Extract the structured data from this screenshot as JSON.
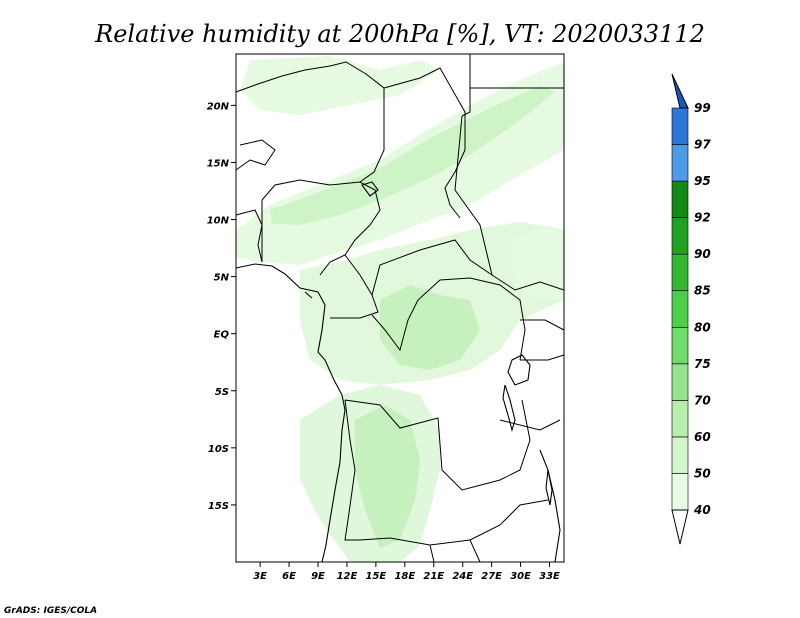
{
  "title": "Relative humidity at 200hPa [%], VT: 2020033112",
  "credit": "GrADS: IGES/COLA",
  "map": {
    "lat_labels": [
      "20N",
      "15N",
      "10N",
      "5N",
      "EQ",
      "5S",
      "10S",
      "15S"
    ],
    "lon_labels": [
      "3E",
      "6E",
      "9E",
      "12E",
      "15E",
      "18E",
      "21E",
      "24E",
      "27E",
      "30E",
      "33E"
    ],
    "lat_values": [
      20,
      15,
      10,
      5,
      0,
      -5,
      -10,
      -15
    ],
    "lon_values": [
      3,
      6,
      9,
      12,
      15,
      18,
      21,
      24,
      27,
      30,
      33
    ],
    "extent": {
      "lon_min": 0.5,
      "lon_max": 34.5,
      "lat_min": -20,
      "lat_max": 24.5
    }
  },
  "colorbar": {
    "labels": [
      "40",
      "50",
      "60",
      "70",
      "75",
      "80",
      "85",
      "90",
      "92",
      "95",
      "97",
      "99"
    ],
    "colors": [
      "#ffffff",
      "#eafbe6",
      "#d2f5cb",
      "#b6eeae",
      "#96e590",
      "#70dc6c",
      "#4ed04c",
      "#34b834",
      "#22a022",
      "#148a14",
      "#4b9be6",
      "#2c78d8",
      "#1559c2"
    ]
  }
}
